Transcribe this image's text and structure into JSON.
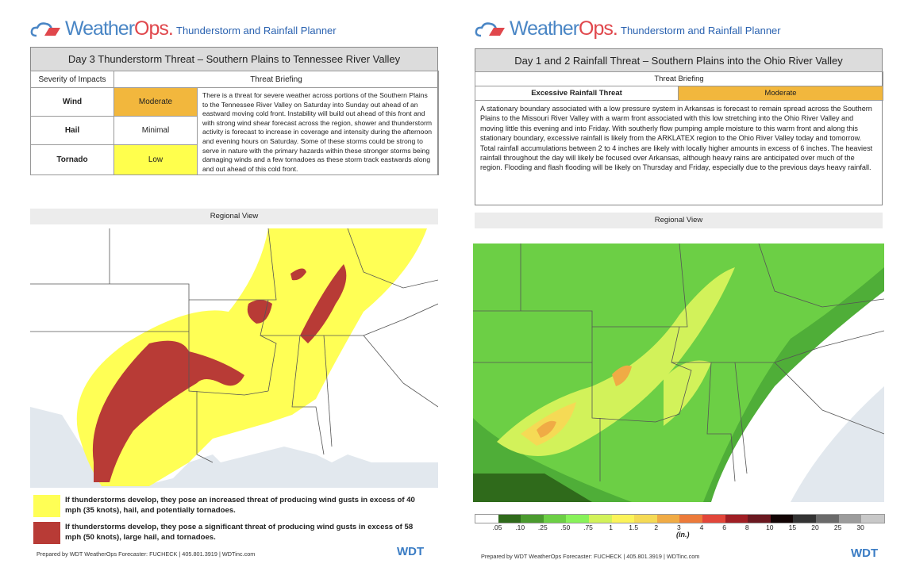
{
  "brand": {
    "logo_text_a": "Weather",
    "logo_text_b": "Ops.",
    "planner_title": "Thunderstorm and Rainfall Planner",
    "wdt_logo": "WDT"
  },
  "left": {
    "title": "Day 3 Thunderstorm Threat – Southern Plains to Tennessee River Valley",
    "severity_header": "Severity of Impacts",
    "briefing_header": "Threat Briefing",
    "rows": [
      {
        "label": "Wind",
        "value": "Moderate",
        "color": "#f2b73d"
      },
      {
        "label": "Hail",
        "value": "Minimal",
        "color": "#ffffff"
      },
      {
        "label": "Tornado",
        "value": "Low",
        "color": "#ffff4d"
      }
    ],
    "briefing": "There is a threat for severe weather across portions of the Southern Plains to the Tennessee River Valley on Saturday into Sunday out ahead of an eastward moving cold front. Instability will build out ahead of this front and with strong wind shear forecast across the region, shower and thunderstorm activity is forecast to increase in coverage and intensity during the afternoon and evening hours on Saturday. Some of these storms could be strong to serve in nature with the primary hazards within these stronger storms being damaging winds and a few tornadoes as these storm track eastwards along and out ahead of this cold front.",
    "map_title": "Regional View",
    "legend": [
      {
        "color": "#ffff55",
        "text": "If thunderstorms develop, they pose an increased threat of producing wind gusts in excess of 40 mph (35 knots), hail, and potentially tornadoes."
      },
      {
        "color": "#b83b36",
        "text": "If thunderstorms develop, they pose a significant threat of producing wind gusts in excess of 58 mph (50 knots), large hail, and tornadoes."
      }
    ],
    "footer": "Prepared by WDT WeatherOps Forecaster: FUCHECK | 405.801.3919 | WDTinc.com"
  },
  "right": {
    "title": "Day 1 and 2 Rainfall Threat – Southern Plains into the Ohio River Valley",
    "briefing_header": "Threat Briefing",
    "threat_label": "Excessive Rainfall Threat",
    "threat_value": "Moderate",
    "threat_color": "#f2b73d",
    "briefing": "A stationary boundary associated with a low pressure system in Arkansas is forecast to remain spread across the Southern Plains to the Missouri River Valley with a warm front associated with this low stretching into the Ohio River Valley and moving little this evening and into Friday.  With southerly flow pumping ample moisture to this warm front and along this stationary boundary, excessive rainfall is likely from the ARKLATEX region to the Ohio River Valley today and tomorrow. Total rainfall accumulations between 2 to 4 inches are likely with locally higher amounts in excess of 6 inches. The heaviest rainfall throughout the day will likely be focused over Arkansas, although heavy rains are anticipated over much of the region. Flooding and flash flooding will be likely on Thursday and Friday, especially due to the previous days heavy rainfall.",
    "map_title": "Regional View",
    "scale_colors": [
      "#ffffff",
      "#2f6a1b",
      "#4a9a2e",
      "#6ccf45",
      "#88f25a",
      "#d2f25a",
      "#fbf35a",
      "#f5da55",
      "#f0ab45",
      "#ec7a3a",
      "#e2463a",
      "#a01e24",
      "#6a1820",
      "#120404",
      "#333333",
      "#6a6a6a",
      "#9c9c9c",
      "#c8c8c8"
    ],
    "scale_labels": [
      ".05",
      ".10",
      ".25",
      ".50",
      ".75",
      "1",
      "1.5",
      "2",
      "3",
      "4",
      "6",
      "8",
      "10",
      "15",
      "20",
      "25",
      "30"
    ],
    "scale_unit": "(in.)",
    "footer": "Prepared by WDT WeatherOps Forecaster: FUCHECK | 405.801.3919 | WDTinc.com"
  }
}
